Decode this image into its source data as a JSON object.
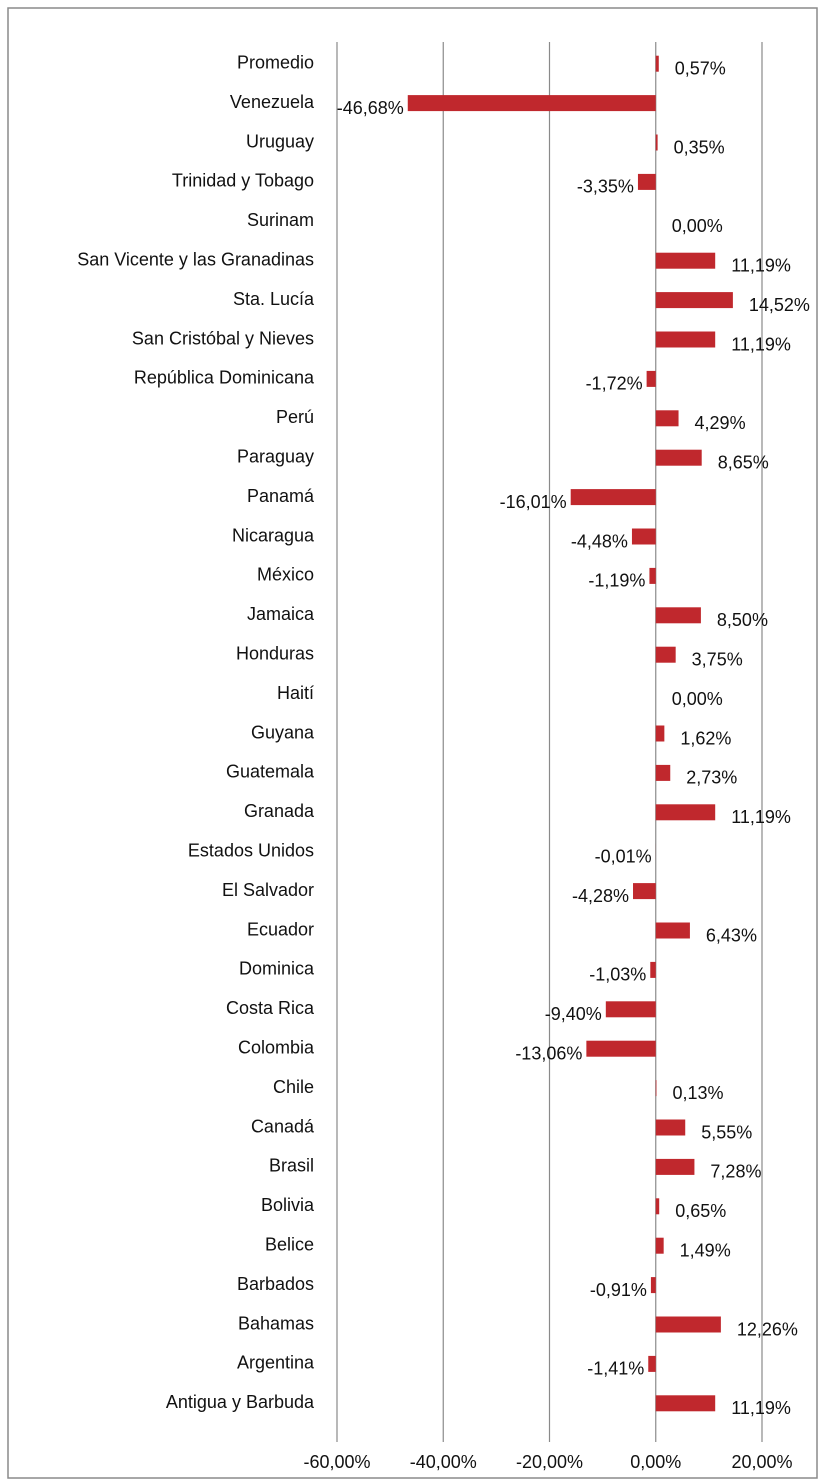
{
  "chart_data": {
    "type": "bar",
    "orientation": "horizontal",
    "categories": [
      "Promedio",
      "Venezuela",
      "Uruguay",
      "Trinidad y Tobago",
      "Surinam",
      "San Vicente y las Granadinas",
      "Sta. Lucía",
      "San Cristóbal y Nieves",
      "República Dominicana",
      "Perú",
      "Paraguay",
      "Panamá",
      "Nicaragua",
      "México",
      "Jamaica",
      "Honduras",
      "Haití",
      "Guyana",
      "Guatemala",
      "Granada",
      "Estados Unidos",
      "El Salvador",
      "Ecuador",
      "Dominica",
      "Costa Rica",
      "Colombia",
      "Chile",
      "Canadá",
      "Brasil",
      "Bolivia",
      "Belice",
      "Barbados",
      "Bahamas",
      "Argentina",
      "Antigua y Barbuda"
    ],
    "values": [
      0.57,
      -46.68,
      0.35,
      -3.35,
      0.0,
      11.19,
      14.52,
      11.19,
      -1.72,
      4.29,
      8.65,
      -16.01,
      -4.48,
      -1.19,
      8.5,
      3.75,
      0.0,
      1.62,
      2.73,
      11.19,
      -0.01,
      -4.28,
      6.43,
      -1.03,
      -9.4,
      -13.06,
      0.13,
      5.55,
      7.28,
      0.65,
      1.49,
      -0.91,
      12.26,
      -1.41,
      11.19
    ],
    "value_labels": [
      "0,57%",
      "-46,68%",
      "0,35%",
      "-3,35%",
      "0,00%",
      "11,19%",
      "14,52%",
      "11,19%",
      "-1,72%",
      "4,29%",
      "8,65%",
      "-16,01%",
      "-4,48%",
      "-1,19%",
      "8,50%",
      "3,75%",
      "0,00%",
      "1,62%",
      "2,73%",
      "11,19%",
      "-0,01%",
      "-4,28%",
      "6,43%",
      "-1,03%",
      "-9,40%",
      "-13,06%",
      "0,13%",
      "5,55%",
      "7,28%",
      "0,65%",
      "1,49%",
      "-0,91%",
      "12,26%",
      "-1,41%",
      "11,19%"
    ],
    "color": "#c0282d",
    "xlim": [
      -60,
      20
    ],
    "xticks": [
      {
        "value": -60,
        "label": "-60,00%"
      },
      {
        "value": -40,
        "label": "-40,00%"
      },
      {
        "value": -20,
        "label": "-20,00%"
      },
      {
        "value": 0,
        "label": "0,00%"
      },
      {
        "value": 20,
        "label": "20,00%"
      }
    ],
    "grid": true
  }
}
